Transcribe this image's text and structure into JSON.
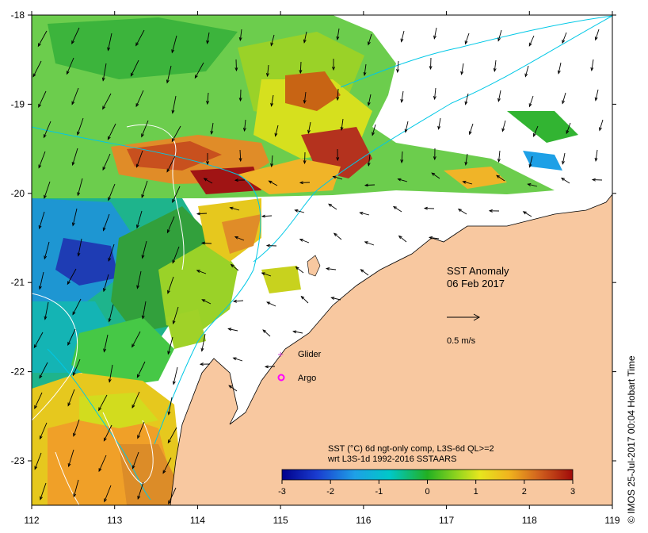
{
  "map": {
    "title": "SST Anomaly",
    "date": "06 Feb 2017",
    "x_axis": {
      "ticks": [
        "112",
        "113",
        "114",
        "115",
        "116",
        "117",
        "118",
        "119"
      ]
    },
    "y_axis": {
      "ticks": [
        "-18",
        "-19",
        "-20",
        "-21",
        "-22",
        "-23"
      ]
    },
    "current_scale_label": "0.5 m/s",
    "legend": {
      "glider_label": "Glider",
      "argo_label": "Argo",
      "glider_color": "#cc33cc",
      "argo_color": "#ff00ff"
    },
    "colorbar": {
      "line1": "SST (°C) 6d ngt-only comp, L3S-6d QL>=2",
      "line2": "wrt L3S-1d 1992-2016 SSTAARS",
      "ticks": [
        "-3",
        "-2",
        "-1",
        "0",
        "1",
        "2",
        "3"
      ],
      "min": -3,
      "max": 3
    },
    "credit": "©  IMOS 25-Jul-2017 00:04 Hobart Time",
    "colors": {
      "land": "#f8c8a0",
      "current_contour": "#00c8e6",
      "arrow": "#000000"
    }
  }
}
